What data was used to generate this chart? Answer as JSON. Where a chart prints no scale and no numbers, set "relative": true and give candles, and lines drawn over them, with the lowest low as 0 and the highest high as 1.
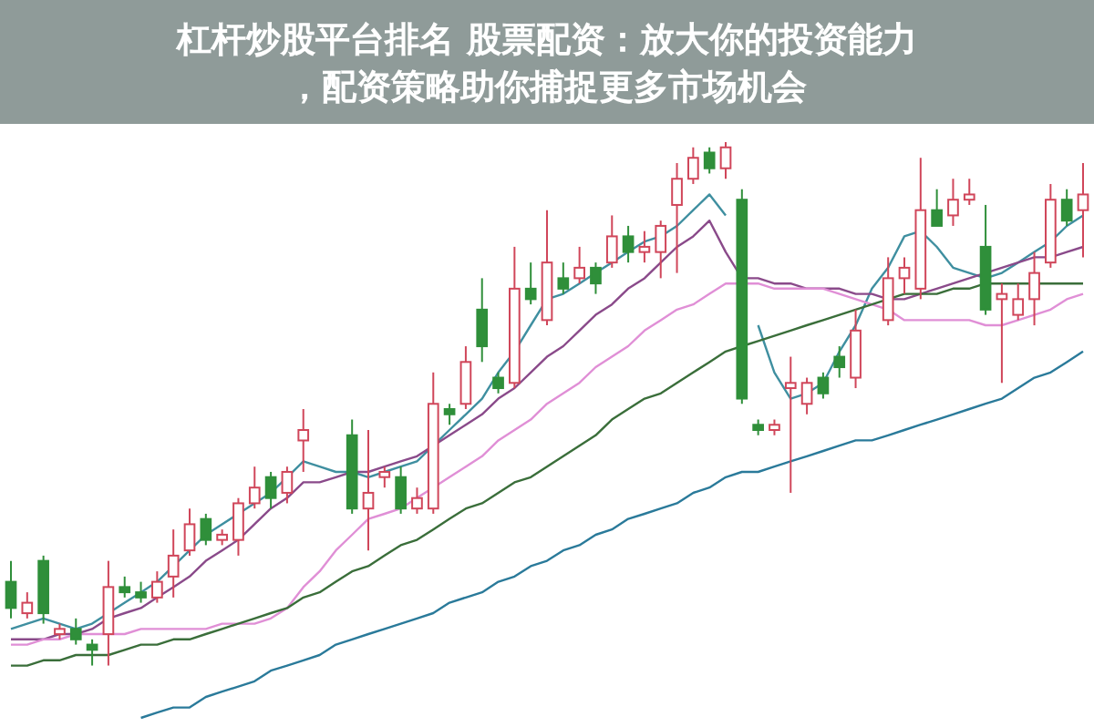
{
  "chart_data": {
    "type": "candlestick",
    "title": "杠杆炒股平台排名 股票配资：放大你的投资能力，配资策略助你捕捉更多市场机会",
    "relative": true,
    "categories": [
      null,
      null,
      null,
      null,
      null,
      null,
      null,
      null,
      null,
      null,
      null,
      null,
      null,
      null,
      null,
      null,
      null,
      null,
      null,
      null,
      null,
      null,
      null,
      null,
      null,
      null,
      null,
      null,
      null,
      null,
      null,
      null,
      null,
      null,
      null,
      null,
      null,
      null,
      null,
      null,
      null,
      null,
      null,
      null,
      null,
      null,
      null,
      null,
      null,
      null,
      null,
      null,
      null,
      null,
      null,
      null,
      null,
      null,
      null,
      null,
      null,
      null,
      null,
      null,
      null,
      null,
      null
    ],
    "ohlc": [
      [
        0.16,
        0.2,
        0.09,
        0.11
      ],
      [
        0.1,
        0.14,
        0.09,
        0.12
      ],
      [
        0.2,
        0.21,
        0.08,
        0.1
      ],
      [
        0.06,
        0.08,
        0.05,
        0.07
      ],
      [
        0.07,
        0.09,
        0.04,
        0.05
      ],
      [
        0.04,
        0.05,
        0,
        0.03
      ],
      [
        0.06,
        0.2,
        0,
        0.15
      ],
      [
        0.15,
        0.17,
        0.13,
        0.14
      ],
      [
        0.14,
        0.16,
        0.12,
        0.13
      ],
      [
        0.13,
        0.18,
        0.12,
        0.16
      ],
      [
        0.17,
        0.26,
        0.13,
        0.21
      ],
      [
        0.22,
        0.3,
        0.21,
        0.27
      ],
      [
        0.28,
        0.29,
        0.23,
        0.24
      ],
      [
        0.24,
        0.26,
        0.23,
        0.25
      ],
      [
        0.24,
        0.32,
        0.21,
        0.31
      ],
      [
        0.31,
        0.38,
        0.3,
        0.34
      ],
      [
        0.36,
        0.37,
        0.3,
        0.32
      ],
      [
        0.33,
        0.38,
        0.31,
        0.37
      ],
      [
        0.43,
        0.49,
        0.37,
        0.45
      ],
      null,
      null,
      [
        0.44,
        0.47,
        0.29,
        0.3
      ],
      [
        0.3,
        0.45,
        0.22,
        0.33
      ],
      [
        0.36,
        0.38,
        0.34,
        0.37
      ],
      [
        0.36,
        0.38,
        0.29,
        0.3
      ],
      [
        0.3,
        0.34,
        0.29,
        0.32
      ],
      [
        0.3,
        0.56,
        0.29,
        0.5
      ],
      [
        0.49,
        0.5,
        0.46,
        0.48
      ],
      [
        0.5,
        0.61,
        0.49,
        0.58
      ],
      [
        0.68,
        0.74,
        0.58,
        0.61
      ],
      [
        0.55,
        0.56,
        0.52,
        0.53
      ],
      [
        0.54,
        0.8,
        0.53,
        0.72
      ],
      [
        0.72,
        0.77,
        0.69,
        0.7
      ],
      [
        0.66,
        0.87,
        0.65,
        0.77
      ],
      [
        0.74,
        0.77,
        0.71,
        0.72
      ],
      [
        0.74,
        0.8,
        0.73,
        0.76
      ],
      [
        0.76,
        0.77,
        0.71,
        0.73
      ],
      [
        0.77,
        0.86,
        0.76,
        0.82
      ],
      [
        0.82,
        0.84,
        0.77,
        0.79
      ],
      [
        0.79,
        0.83,
        0.77,
        0.8
      ],
      [
        0.79,
        0.85,
        0.74,
        0.84
      ],
      [
        0.88,
        0.96,
        0.75,
        0.93
      ],
      [
        0.93,
        0.99,
        0.92,
        0.97
      ],
      [
        0.98,
        0.99,
        0.94,
        0.95
      ],
      [
        0.95,
        1,
        0.93,
        0.99
      ],
      [
        0.89,
        0.91,
        0.5,
        0.51
      ],
      [
        0.46,
        0.47,
        0.44,
        0.45
      ],
      [
        0.45,
        0.47,
        0.44,
        0.46
      ],
      [
        0.53,
        0.59,
        0.33,
        0.54
      ],
      [
        0.5,
        0.55,
        0.48,
        0.54
      ],
      [
        0.55,
        0.56,
        0.51,
        0.52
      ],
      [
        0.59,
        0.61,
        0.55,
        0.57
      ],
      [
        0.55,
        0.68,
        0.53,
        0.64
      ],
      null,
      [
        0.66,
        0.78,
        0.65,
        0.74
      ],
      [
        0.74,
        0.78,
        0.71,
        0.76
      ],
      [
        0.72,
        0.97,
        0.7,
        0.87
      ],
      [
        0.87,
        0.91,
        0.84,
        0.84
      ],
      [
        0.86,
        0.93,
        0.84,
        0.89
      ],
      [
        0.89,
        0.93,
        0.88,
        0.9
      ],
      [
        0.8,
        0.88,
        0.67,
        0.68
      ],
      [
        0.7,
        0.73,
        0.54,
        0.71
      ],
      [
        0.67,
        0.73,
        0.66,
        0.7
      ],
      [
        0.7,
        0.79,
        0.65,
        0.75
      ],
      [
        0.77,
        0.92,
        0.76,
        0.89
      ],
      [
        0.89,
        0.91,
        0.84,
        0.85
      ],
      [
        0.87,
        0.96,
        0.78,
        0.9
      ]
    ],
    "series": [
      {
        "type": "line",
        "color": "#3f8fa0",
        "values": [
          0.07,
          0.08,
          0.09,
          0.08,
          0.07,
          0.08,
          0.1,
          0.12,
          0.14,
          0.16,
          0.19,
          0.22,
          0.25,
          0.27,
          0.29,
          0.31,
          0.33,
          0.36,
          0.39,
          0.38,
          0.37,
          0.37,
          0.36,
          0.37,
          0.38,
          0.39,
          0.42,
          0.45,
          0.48,
          0.51,
          0.56,
          0.6,
          0.65,
          0.7,
          0.71,
          0.73,
          0.75,
          0.77,
          0.79,
          0.81,
          0.82,
          0.84,
          0.87,
          0.9,
          0.86,
          null,
          0.65,
          0.56,
          0.51,
          0.52,
          0.54,
          0.6,
          0.65,
          0.72,
          0.76,
          0.82,
          0.83,
          0.8,
          0.76,
          0.75,
          0.74,
          0.75,
          0.77,
          0.79,
          0.81,
          0.84,
          0.86
        ]
      },
      {
        "type": "line",
        "color": "#8a4a8a",
        "values": [
          0.05,
          0.05,
          0.05,
          0.06,
          0.06,
          0.07,
          0.09,
          0.1,
          0.11,
          0.13,
          0.15,
          0.17,
          0.2,
          0.22,
          0.24,
          0.27,
          0.3,
          0.32,
          0.35,
          0.35,
          0.36,
          0.37,
          0.37,
          0.38,
          0.39,
          0.4,
          0.42,
          0.44,
          0.46,
          0.48,
          0.51,
          0.53,
          0.56,
          0.59,
          0.61,
          0.64,
          0.67,
          0.69,
          0.72,
          0.74,
          0.77,
          0.8,
          0.82,
          0.85,
          0.79,
          0.74,
          0.74,
          0.73,
          0.73,
          0.72,
          0.72,
          0.72,
          0.71,
          0.71,
          0.7,
          0.7,
          0.71,
          0.72,
          0.73,
          0.74,
          0.75,
          0.76,
          0.77,
          0.78,
          0.78,
          0.79,
          0.8
        ]
      },
      {
        "type": "line",
        "color": "#e08fd6",
        "values": [
          0.04,
          0.04,
          0.05,
          0.05,
          0.06,
          0.06,
          0.06,
          0.06,
          0.07,
          0.07,
          0.07,
          0.07,
          0.07,
          0.08,
          0.08,
          0.08,
          0.09,
          0.11,
          0.15,
          0.18,
          0.22,
          0.25,
          0.28,
          0.29,
          0.3,
          0.32,
          0.34,
          0.36,
          0.38,
          0.4,
          0.43,
          0.45,
          0.47,
          0.5,
          0.52,
          0.54,
          0.57,
          0.59,
          0.61,
          0.64,
          0.66,
          0.68,
          0.69,
          0.71,
          0.73,
          0.73,
          0.73,
          0.72,
          0.72,
          0.72,
          0.72,
          0.71,
          0.7,
          0.69,
          0.68,
          0.66,
          0.66,
          0.66,
          0.66,
          0.66,
          0.65,
          0.65,
          0.66,
          0.67,
          0.68,
          0.7,
          0.71
        ]
      },
      {
        "type": "line",
        "color": "#3a6e3a",
        "values": [
          0,
          0,
          0.01,
          0.01,
          0.02,
          0.02,
          0.02,
          0.03,
          0.04,
          0.04,
          0.05,
          0.05,
          0.06,
          0.07,
          0.08,
          0.09,
          0.1,
          0.11,
          0.13,
          0.14,
          0.16,
          0.18,
          0.19,
          0.21,
          0.23,
          0.24,
          0.26,
          0.28,
          0.3,
          0.31,
          0.33,
          0.35,
          0.36,
          0.38,
          0.4,
          0.42,
          0.44,
          0.47,
          0.49,
          0.51,
          0.52,
          0.54,
          0.56,
          0.58,
          0.6,
          0.61,
          0.62,
          0.63,
          0.64,
          0.65,
          0.66,
          0.67,
          0.68,
          0.69,
          0.7,
          0.71,
          0.71,
          0.71,
          0.72,
          0.72,
          0.73,
          0.73,
          0.73,
          0.73,
          0.73,
          0.73,
          0.73
        ]
      },
      {
        "type": "line",
        "color": "#2a7a9a",
        "values": [
          null,
          null,
          null,
          null,
          null,
          null,
          null,
          null,
          -0.1,
          -0.09,
          -0.08,
          -0.08,
          -0.06,
          -0.05,
          -0.04,
          -0.03,
          -0.01,
          0,
          0.01,
          0.02,
          0.04,
          0.05,
          0.06,
          0.07,
          0.08,
          0.09,
          0.1,
          0.12,
          0.13,
          0.14,
          0.16,
          0.17,
          0.19,
          0.2,
          0.22,
          0.23,
          0.25,
          0.26,
          0.28,
          0.29,
          0.3,
          0.31,
          0.33,
          0.34,
          0.36,
          0.37,
          0.37,
          0.38,
          0.39,
          0.4,
          0.41,
          0.42,
          0.43,
          0.43,
          0.44,
          0.45,
          0.46,
          0.47,
          0.48,
          0.49,
          0.5,
          0.51,
          0.53,
          0.55,
          0.56,
          0.58,
          0.6
        ]
      }
    ]
  }
}
